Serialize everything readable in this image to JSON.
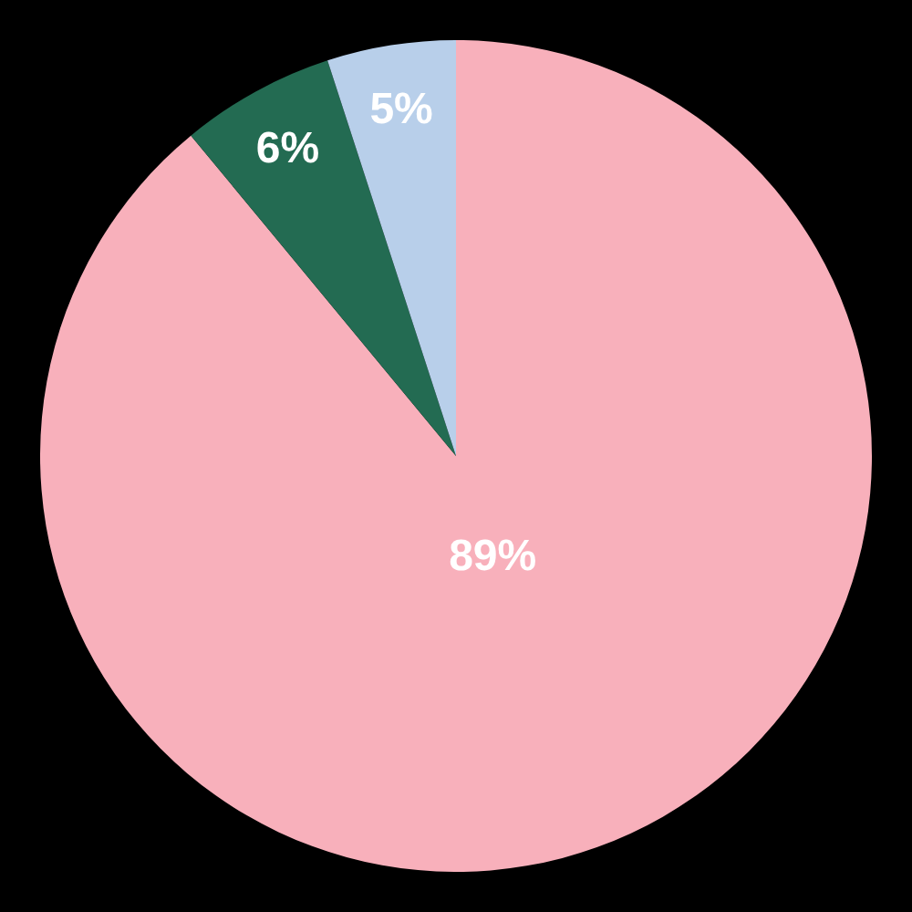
{
  "chart_data": {
    "type": "pie",
    "categories": [
      null,
      null,
      null
    ],
    "values": [
      89,
      6,
      5
    ],
    "colors": [
      "#f8b0bb",
      "#236b52",
      "#b8cfea"
    ],
    "value_labels": [
      "89%",
      "6%",
      "5%"
    ],
    "legend": false
  }
}
